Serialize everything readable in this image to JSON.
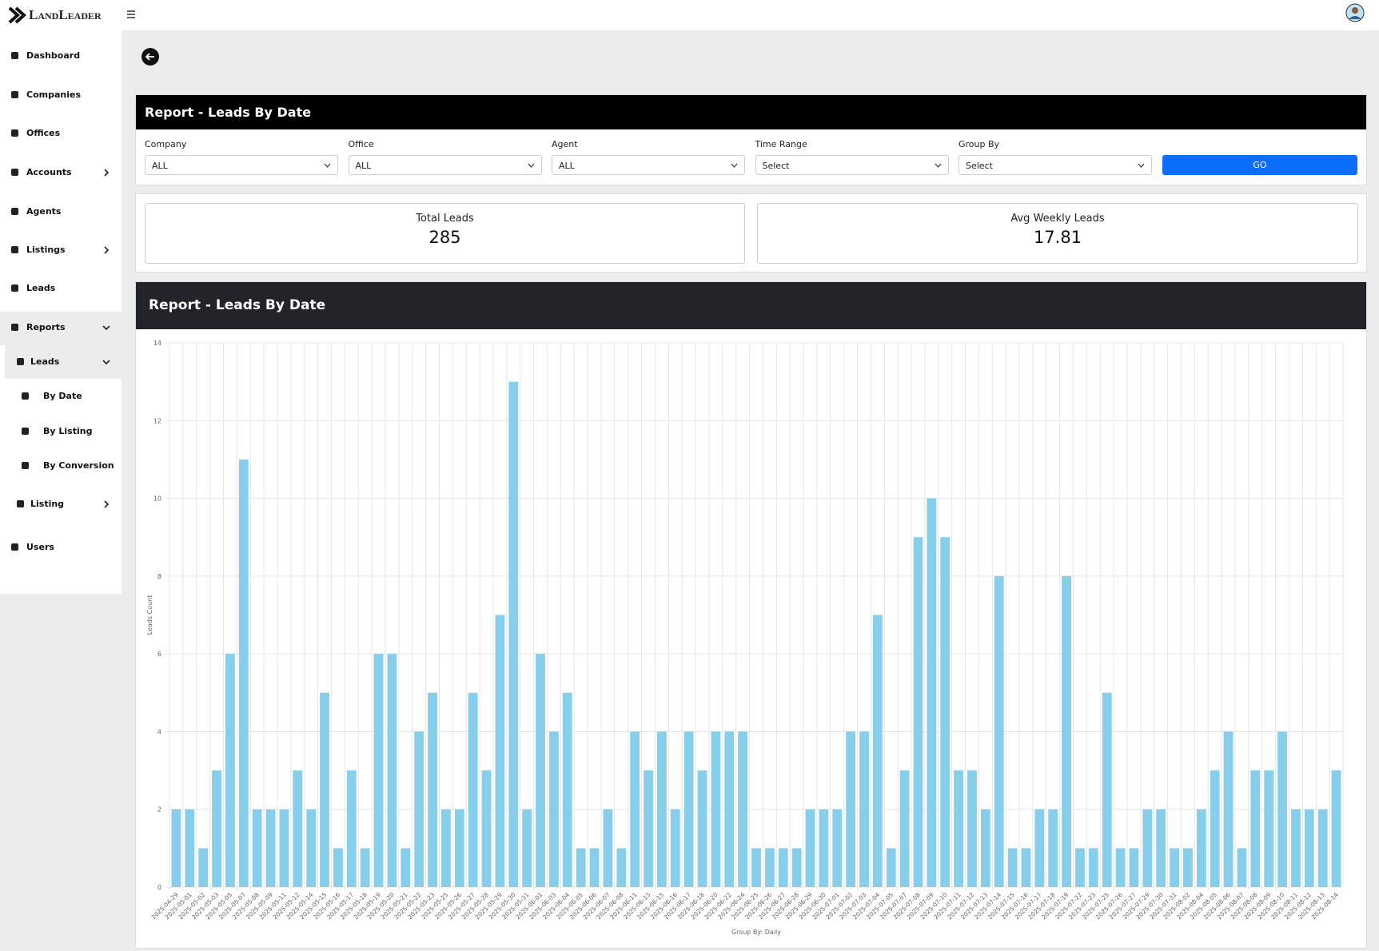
{
  "brand": "LandLeader",
  "sidebar": [
    "Dashboard",
    "Companies",
    "Offices",
    "Accounts",
    "Agents",
    "Listings",
    "Leads",
    "Reports",
    "Leads",
    "By Date",
    "By Listing",
    "By Conversion",
    "Listing",
    "Users"
  ],
  "filters": {
    "title": "Report - Leads By Date",
    "fields": [
      {
        "label": "Company",
        "value": "ALL"
      },
      {
        "label": "Office",
        "value": "ALL"
      },
      {
        "label": "Agent",
        "value": "ALL"
      },
      {
        "label": "Time Range",
        "value": "Select"
      },
      {
        "label": "Group By",
        "value": "Select"
      }
    ],
    "button": "GO"
  },
  "stats": [
    {
      "label": "Total Leads",
      "value": 285
    },
    {
      "label": "Avg Weekly Leads",
      "value": 17.81
    }
  ],
  "chart_data": {
    "type": "bar",
    "title": "Report - Leads By Date",
    "y_label": "Leads Count",
    "x_label": "Group By: Daily",
    "color": "#87ceeb",
    "grid": true,
    "categories": [
      "2025-04-29",
      "2025-05-01",
      "2025-05-02",
      "2025-05-03",
      "2025-05-05",
      "2025-05-07",
      "2025-05-08",
      "2025-05-09",
      "2025-05-11",
      "2025-05-12",
      "2025-05-14",
      "2025-05-15",
      "2025-05-16",
      "2025-05-17",
      "2025-05-18",
      "2025-05-19",
      "2025-05-20",
      "2025-05-21",
      "2025-05-22",
      "2025-05-23",
      "2025-05-25",
      "2025-05-26",
      "2025-05-27",
      "2025-05-28",
      "2025-05-29",
      "2025-05-30",
      "2025-05-31",
      "2025-06-01",
      "2025-06-03",
      "2025-06-04",
      "2025-06-05",
      "2025-06-06",
      "2025-06-07",
      "2025-06-08",
      "2025-06-11",
      "2025-06-13",
      "2025-06-15",
      "2025-06-16",
      "2025-06-17",
      "2025-06-18",
      "2025-06-20",
      "2025-06-22",
      "2025-06-24",
      "2025-06-25",
      "2025-06-26",
      "2025-06-27",
      "2025-06-28",
      "2025-06-29",
      "2025-06-30",
      "2025-07-01",
      "2025-07-02",
      "2025-07-03",
      "2025-07-04",
      "2025-07-05",
      "2025-07-07",
      "2025-07-08",
      "2025-07-09",
      "2025-07-10",
      "2025-07-11",
      "2025-07-12",
      "2025-07-13",
      "2025-07-14",
      "2025-07-15",
      "2025-07-16",
      "2025-07-17",
      "2025-07-18",
      "2025-07-19",
      "2025-07-22",
      "2025-07-23",
      "2025-07-25",
      "2025-07-26",
      "2025-07-27",
      "2025-07-29",
      "2025-07-30",
      "2025-07-31",
      "2025-08-02",
      "2025-08-04",
      "2025-08-05",
      "2025-08-06",
      "2025-08-07",
      "2025-08-08",
      "2025-08-09",
      "2025-08-10",
      "2025-08-11",
      "2025-08-12",
      "2025-08-13",
      "2025-08-14"
    ],
    "values": [
      2,
      2,
      1,
      3,
      6,
      11,
      2,
      2,
      2,
      3,
      2,
      5,
      1,
      3,
      1,
      6,
      6,
      1,
      4,
      5,
      2,
      2,
      5,
      3,
      7,
      13,
      2,
      6,
      4,
      5,
      1,
      1,
      2,
      1,
      4,
      3,
      4,
      2,
      4,
      3,
      4,
      4,
      4,
      1,
      1,
      1,
      1,
      2,
      2,
      2,
      4,
      4,
      7,
      1,
      3,
      9,
      10,
      9,
      3,
      3,
      2,
      8,
      1,
      1,
      2,
      2,
      8,
      1,
      1,
      5,
      1,
      1,
      2,
      2,
      1,
      1,
      2,
      3,
      4,
      1,
      3,
      3,
      4,
      2,
      2,
      2,
      3
    ],
    "ylim": [
      0,
      14
    ],
    "yticks": [
      0,
      2,
      4,
      6,
      8,
      10,
      12,
      14
    ]
  }
}
